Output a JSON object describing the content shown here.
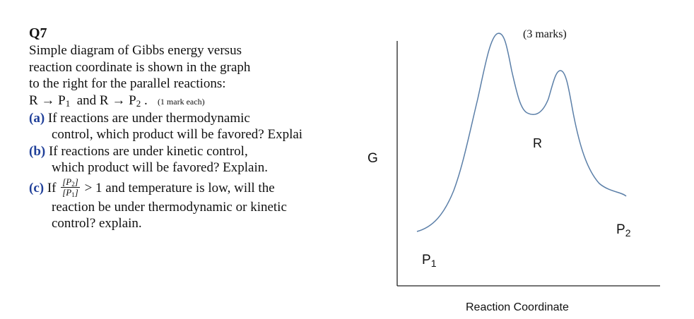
{
  "question": {
    "number": "Q7",
    "intro_lines": [
      "Simple diagram of Gibbs energy versus",
      "reaction coordinate is shown in the graph",
      "to the right for the parallel reactions:"
    ],
    "reactions_text_1": "R → P",
    "reactions_sub_1": "1",
    "reactions_text_2": "  and R → P",
    "reactions_sub_2": "2",
    "reactions_end": " .",
    "reactions_note": "(1 mark each)",
    "part_a_label": "(a)",
    "part_a_line1": "If reactions are under thermodynamic",
    "part_a_line2": "control, which product will be favored? Explai",
    "part_b_label": "(b)",
    "part_b_line1": "If reactions are under kinetic control,",
    "part_b_line2": "which product will be favored? Explain.",
    "part_c_label": "(c)",
    "part_c_if": "If",
    "part_c_frac_num": "[P",
    "part_c_frac_num_sub": "2",
    "part_c_frac_num_end": "]",
    "part_c_frac_den": "[P",
    "part_c_frac_den_sub": "1",
    "part_c_frac_den_end": "]",
    "part_c_rest": "> 1 and temperature is low, will the",
    "part_c_line2": "reaction be under thermodynamic or kinetic",
    "part_c_line3": "control? explain."
  },
  "diagram": {
    "marks": "(3 marks)",
    "y_axis_label": "G",
    "x_axis_label": "Reaction Coordinate",
    "label_R": "R",
    "label_P1": "P",
    "label_P1_sub": "1",
    "label_P2": "P",
    "label_P2_sub": "2",
    "curve_color": "#5b7fa8"
  }
}
